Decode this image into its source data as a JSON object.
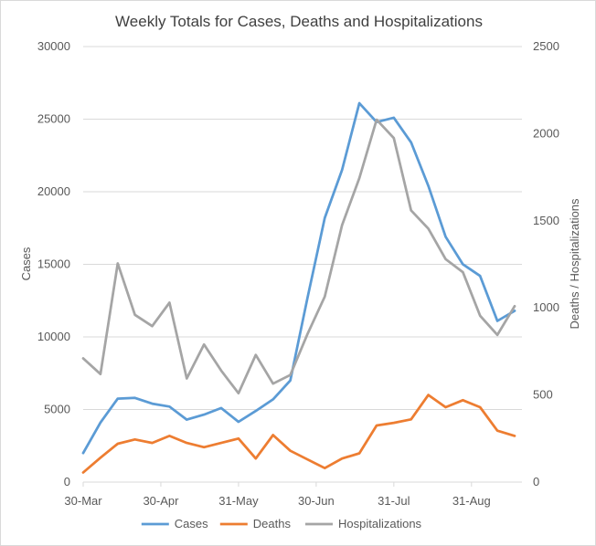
{
  "chart_data": {
    "type": "line",
    "title": "Weekly Totals for Cases, Deaths and Hospitalizations",
    "ylabel_left": "Cases",
    "ylabel_right": "Deaths / Hospitalizations",
    "y_left_range": [
      0,
      30000
    ],
    "y_left_ticks": [
      "0",
      "5000",
      "10000",
      "15000",
      "20000",
      "25000",
      "30000"
    ],
    "y_right_range": [
      0,
      2500
    ],
    "y_right_ticks": [
      "0",
      "500",
      "1000",
      "1500",
      "2000",
      "2500"
    ],
    "x_tick_labels": [
      "30-Mar",
      "30-Apr",
      "31-May",
      "30-Jun",
      "31-Jul",
      "31-Aug"
    ],
    "x_tick_index": [
      0,
      4.5,
      9,
      13.5,
      18,
      22.5
    ],
    "x_count": 26,
    "grid": true,
    "legend_position": "bottom",
    "series": [
      {
        "name": "Cases",
        "axis": "left",
        "color": "#5b9bd5",
        "values": [
          2000,
          4100,
          5750,
          5800,
          5400,
          5200,
          4300,
          4650,
          5100,
          4150,
          4900,
          5700,
          7000,
          12700,
          18200,
          21500,
          26100,
          24800,
          25100,
          23400,
          20400,
          16900,
          15000,
          14200,
          11100,
          11800
        ]
      },
      {
        "name": "Deaths",
        "axis": "right",
        "color": "#ed7d31",
        "values": [
          55,
          140,
          220,
          245,
          225,
          265,
          225,
          200,
          225,
          250,
          135,
          270,
          180,
          130,
          80,
          135,
          165,
          325,
          340,
          360,
          500,
          430,
          470,
          430,
          295,
          265
        ]
      },
      {
        "name": "Hospitalizations",
        "axis": "right",
        "color": "#a5a5a5",
        "values": [
          710,
          620,
          1255,
          960,
          895,
          1030,
          595,
          790,
          640,
          510,
          730,
          565,
          615,
          850,
          1065,
          1475,
          1745,
          2080,
          1975,
          1560,
          1455,
          1280,
          1205,
          955,
          845,
          1010
        ]
      }
    ]
  }
}
